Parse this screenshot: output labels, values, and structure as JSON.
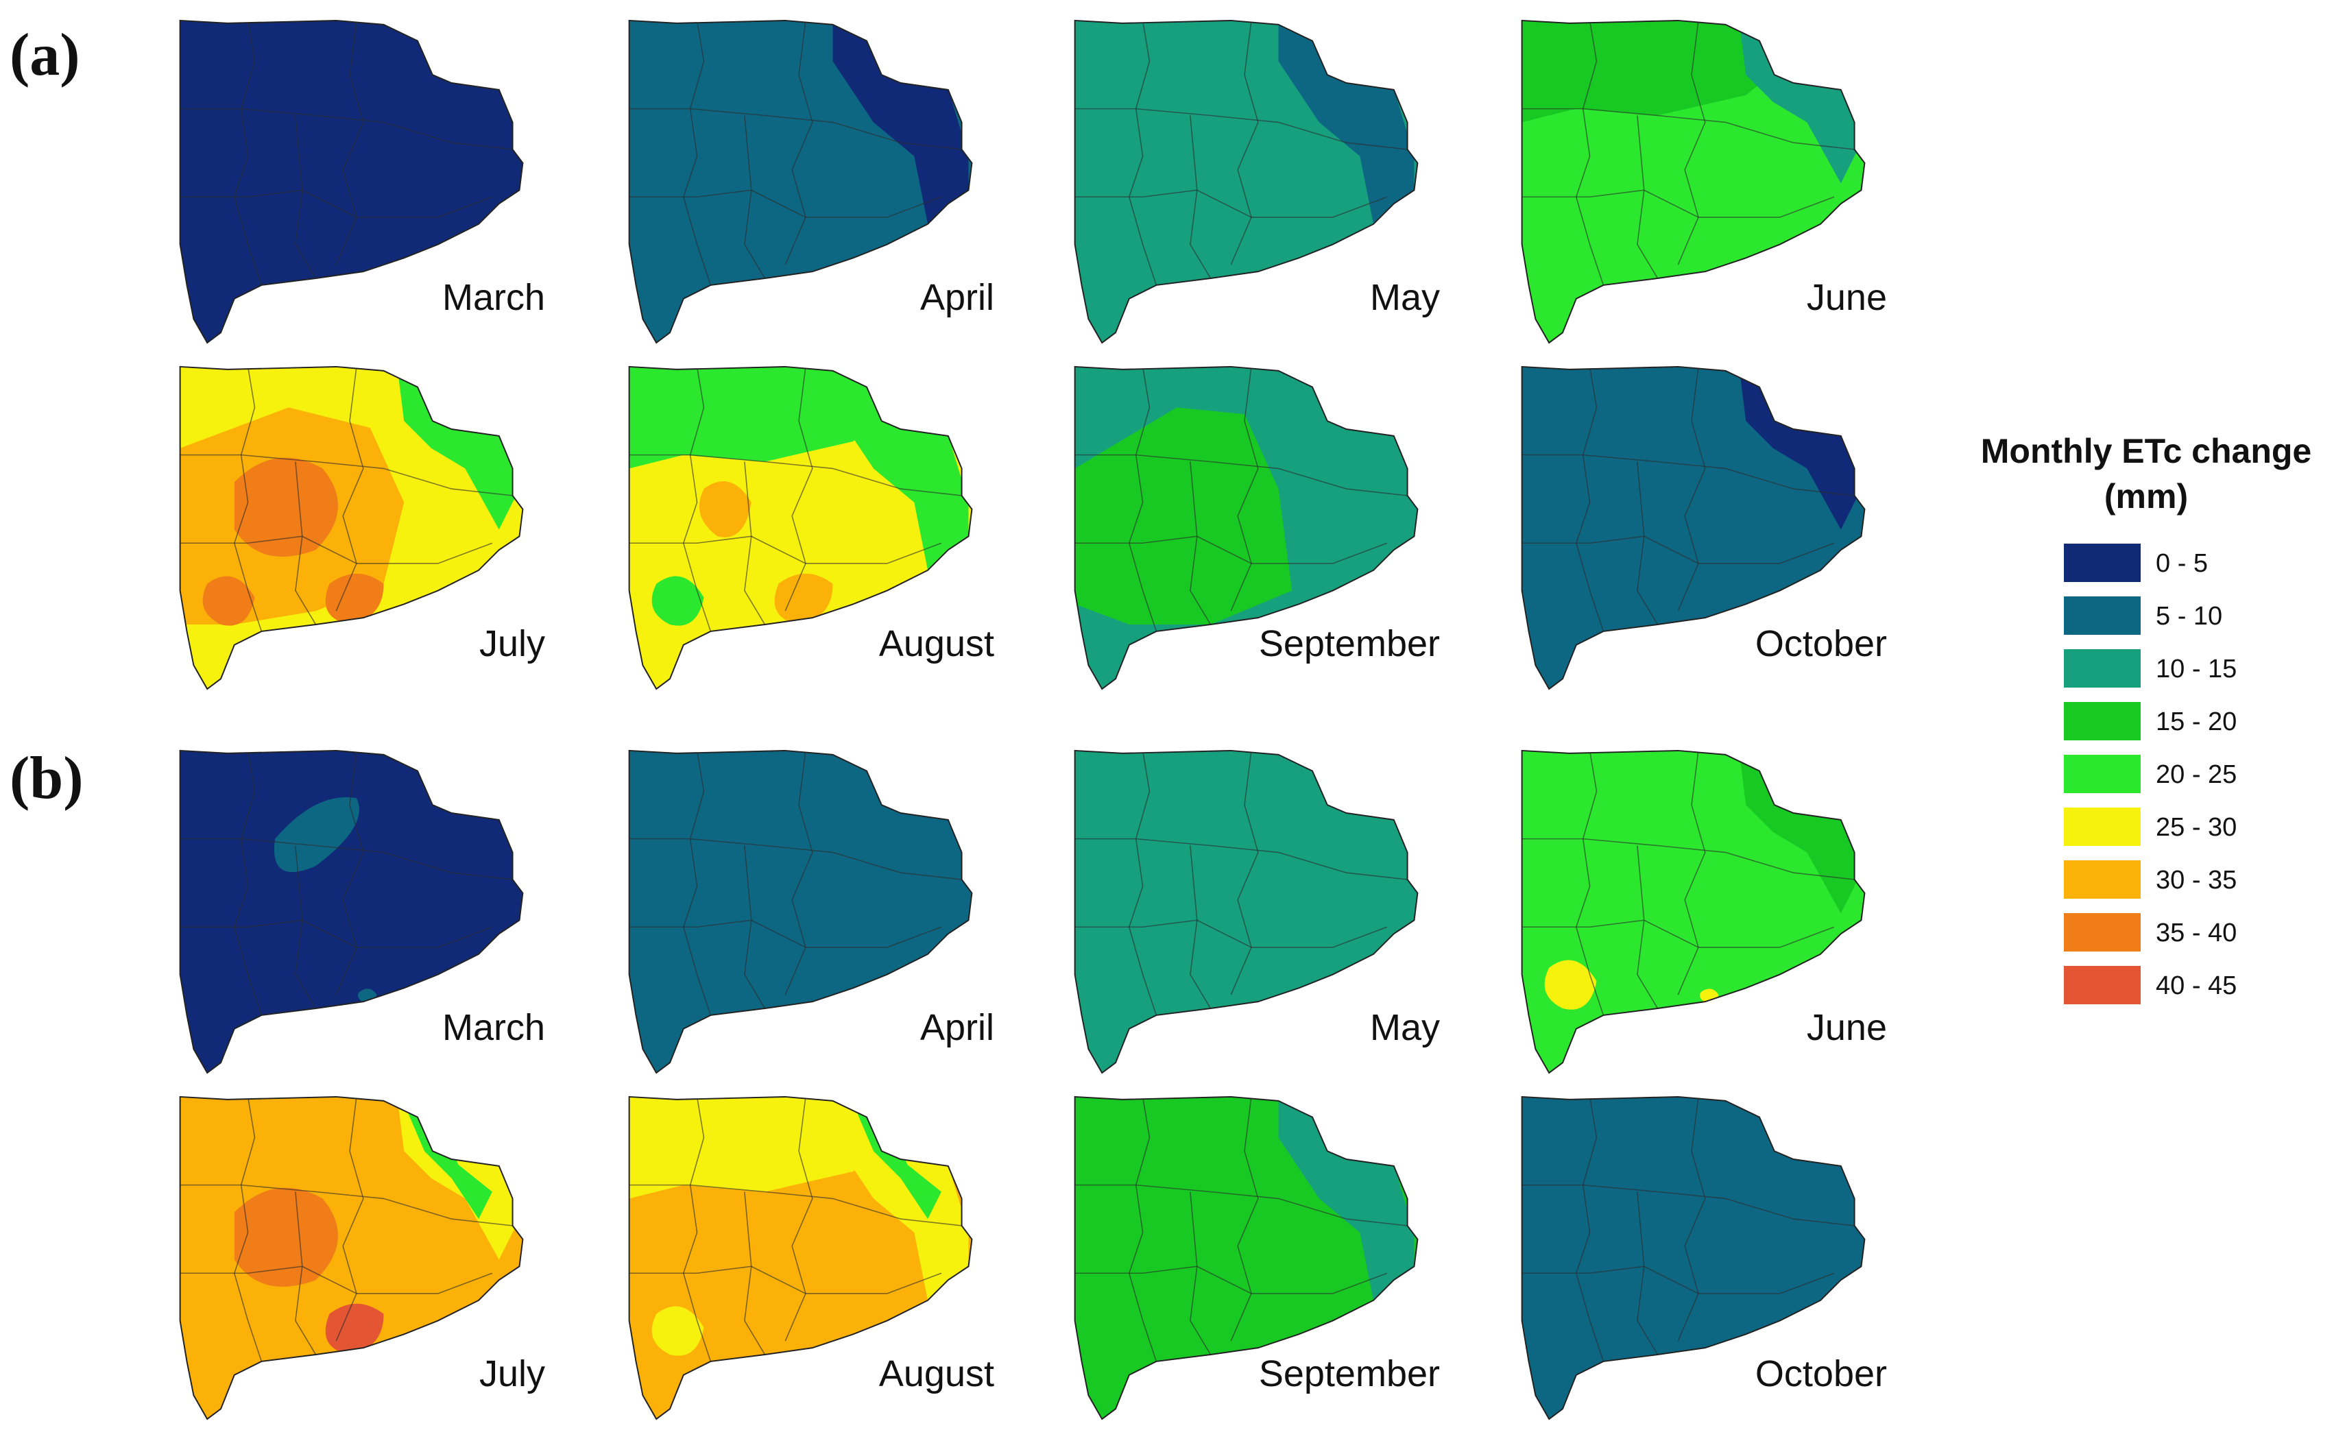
{
  "panels": [
    {
      "letter": "(a)",
      "maps": [
        {
          "month": "March",
          "base": 0,
          "blobs": []
        },
        {
          "month": "April",
          "base": 1,
          "blobs": [
            {
              "c": 0,
              "shape": "east"
            }
          ]
        },
        {
          "month": "May",
          "base": 2,
          "blobs": [
            {
              "c": 1,
              "shape": "east"
            }
          ]
        },
        {
          "month": "June",
          "base": 4,
          "blobs": [
            {
              "c": 3,
              "shape": "north"
            },
            {
              "c": 2,
              "shape": "ne"
            }
          ]
        },
        {
          "month": "July",
          "base": 5,
          "blobs": [
            {
              "c": 4,
              "shape": "ne"
            },
            {
              "c": 6,
              "shape": "west"
            },
            {
              "c": 7,
              "shape": "center"
            },
            {
              "c": 7,
              "shape": "sw-spot"
            },
            {
              "c": 7,
              "shape": "s-spot"
            }
          ]
        },
        {
          "month": "August",
          "base": 5,
          "blobs": [
            {
              "c": 4,
              "shape": "north"
            },
            {
              "c": 4,
              "shape": "east"
            },
            {
              "c": 6,
              "shape": "center-small"
            },
            {
              "c": 6,
              "shape": "s-spot"
            },
            {
              "c": 4,
              "shape": "sw-spot"
            }
          ]
        },
        {
          "month": "September",
          "base": 2,
          "blobs": [
            {
              "c": 3,
              "shape": "center-west"
            }
          ]
        },
        {
          "month": "October",
          "base": 1,
          "blobs": [
            {
              "c": 0,
              "shape": "ne"
            }
          ]
        }
      ]
    },
    {
      "letter": "(b)",
      "maps": [
        {
          "month": "March",
          "base": 0,
          "blobs": [
            {
              "c": 1,
              "shape": "streak"
            },
            {
              "c": 1,
              "shape": "tiny-s"
            }
          ]
        },
        {
          "month": "April",
          "base": 1,
          "blobs": []
        },
        {
          "month": "May",
          "base": 2,
          "blobs": []
        },
        {
          "month": "June",
          "base": 4,
          "blobs": [
            {
              "c": 3,
              "shape": "ne"
            },
            {
              "c": 5,
              "shape": "sw-spot"
            },
            {
              "c": 5,
              "shape": "tiny-s"
            }
          ]
        },
        {
          "month": "July",
          "base": 6,
          "blobs": [
            {
              "c": 5,
              "shape": "ne"
            },
            {
              "c": 4,
              "shape": "ne-small"
            },
            {
              "c": 7,
              "shape": "center"
            },
            {
              "c": 8,
              "shape": "s-spot"
            }
          ]
        },
        {
          "month": "August",
          "base": 6,
          "blobs": [
            {
              "c": 5,
              "shape": "north"
            },
            {
              "c": 5,
              "shape": "east"
            },
            {
              "c": 4,
              "shape": "ne-small"
            },
            {
              "c": 5,
              "shape": "sw-spot"
            }
          ]
        },
        {
          "month": "September",
          "base": 3,
          "blobs": [
            {
              "c": 2,
              "shape": "east"
            }
          ]
        },
        {
          "month": "October",
          "base": 1,
          "blobs": []
        }
      ]
    }
  ],
  "legend": {
    "title_line1": "Monthly ETc change",
    "title_line2": "(mm)",
    "items": [
      {
        "label": "0 - 5",
        "color": "#102a78"
      },
      {
        "label": "5 - 10",
        "color": "#0e6782"
      },
      {
        "label": "10 - 15",
        "color": "#17a07e"
      },
      {
        "label": "15 - 20",
        "color": "#18c924"
      },
      {
        "label": "20 - 25",
        "color": "#2be82e"
      },
      {
        "label": "25 - 30",
        "color": "#f7f10e"
      },
      {
        "label": "30 - 35",
        "color": "#fbb108"
      },
      {
        "label": "35 - 40",
        "color": "#f07d18"
      },
      {
        "label": "40 - 45",
        "color": "#e35533"
      }
    ]
  }
}
